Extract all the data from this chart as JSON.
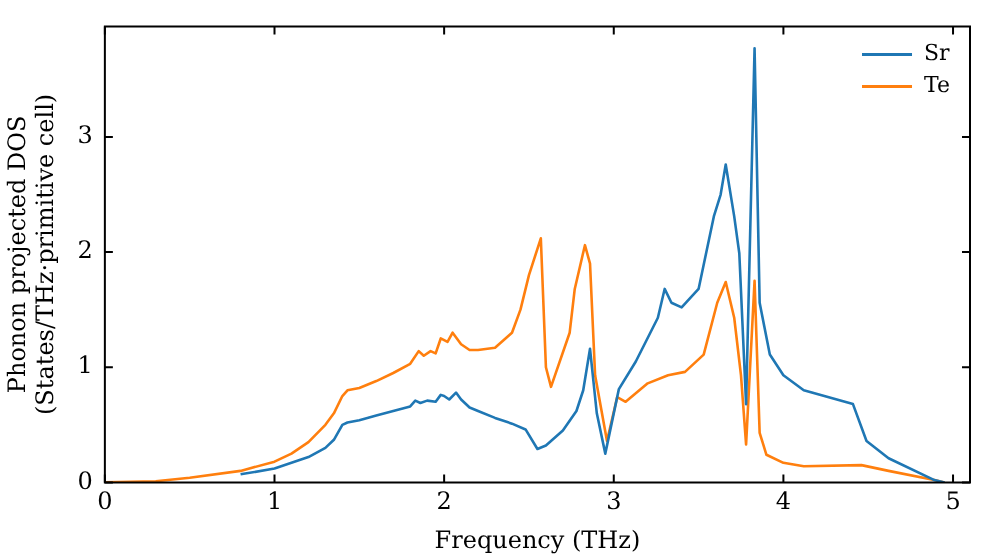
{
  "chart_data": {
    "type": "line",
    "xlabel": "Frequency (THz)",
    "ylabel": "Phonon projected DOS\n(States/THz·primitive cell)",
    "xlim": [
      0,
      5.1
    ],
    "ylim": [
      0,
      3.96
    ],
    "xticks": [
      0,
      1,
      2,
      3,
      4,
      5
    ],
    "yticks": [
      0,
      1,
      2,
      3
    ],
    "grid": false,
    "legend": "top right",
    "marker": "none",
    "line_style": "solid",
    "series": [
      {
        "name": "Sr",
        "color": "#1f77b4",
        "x": [
          0.8,
          1.0,
          1.2,
          1.3,
          1.35,
          1.4,
          1.43,
          1.5,
          1.6,
          1.7,
          1.8,
          1.83,
          1.86,
          1.9,
          1.95,
          1.98,
          2.0,
          2.03,
          2.07,
          2.1,
          2.15,
          2.2,
          2.3,
          2.4,
          2.48,
          2.55,
          2.6,
          2.7,
          2.78,
          2.82,
          2.86,
          2.9,
          2.95,
          3.03,
          3.13,
          3.26,
          3.3,
          3.34,
          3.4,
          3.5,
          3.59,
          3.63,
          3.66,
          3.71,
          3.74,
          3.78,
          3.83,
          3.86,
          3.92,
          4.0,
          4.12,
          4.41,
          4.49,
          4.62,
          4.89,
          4.95
        ],
        "values": [
          0.07,
          0.12,
          0.22,
          0.3,
          0.37,
          0.5,
          0.52,
          0.54,
          0.58,
          0.62,
          0.66,
          0.71,
          0.69,
          0.71,
          0.7,
          0.76,
          0.75,
          0.72,
          0.78,
          0.72,
          0.65,
          0.62,
          0.56,
          0.51,
          0.46,
          0.29,
          0.32,
          0.45,
          0.62,
          0.8,
          1.16,
          0.6,
          0.25,
          0.81,
          1.05,
          1.43,
          1.68,
          1.56,
          1.52,
          1.68,
          2.31,
          2.5,
          2.76,
          2.31,
          1.99,
          0.68,
          3.77,
          1.56,
          1.11,
          0.93,
          0.8,
          0.68,
          0.36,
          0.21,
          0.02,
          0
        ]
      },
      {
        "name": "Te",
        "color": "#ff7f0e",
        "x": [
          0,
          0.3,
          0.5,
          0.8,
          1.0,
          1.1,
          1.2,
          1.3,
          1.35,
          1.4,
          1.43,
          1.5,
          1.6,
          1.7,
          1.8,
          1.85,
          1.88,
          1.92,
          1.95,
          1.98,
          2.02,
          2.05,
          2.1,
          2.15,
          2.2,
          2.3,
          2.4,
          2.45,
          2.5,
          2.57,
          2.6,
          2.63,
          2.74,
          2.77,
          2.83,
          2.86,
          2.89,
          2.96,
          3.02,
          3.07,
          3.2,
          3.32,
          3.42,
          3.53,
          3.61,
          3.66,
          3.71,
          3.75,
          3.78,
          3.83,
          3.86,
          3.9,
          4.0,
          4.12,
          4.46,
          4.62,
          4.89,
          4.95
        ],
        "values": [
          0,
          0.01,
          0.04,
          0.1,
          0.18,
          0.25,
          0.35,
          0.5,
          0.6,
          0.75,
          0.8,
          0.82,
          0.88,
          0.95,
          1.03,
          1.14,
          1.1,
          1.14,
          1.12,
          1.25,
          1.22,
          1.3,
          1.2,
          1.15,
          1.15,
          1.17,
          1.3,
          1.5,
          1.8,
          2.12,
          1.0,
          0.83,
          1.3,
          1.68,
          2.06,
          1.9,
          0.93,
          0.36,
          0.74,
          0.7,
          0.86,
          0.93,
          0.96,
          1.11,
          1.56,
          1.74,
          1.43,
          0.93,
          0.33,
          1.75,
          0.43,
          0.24,
          0.17,
          0.14,
          0.15,
          0.1,
          0.02,
          0
        ]
      }
    ]
  }
}
